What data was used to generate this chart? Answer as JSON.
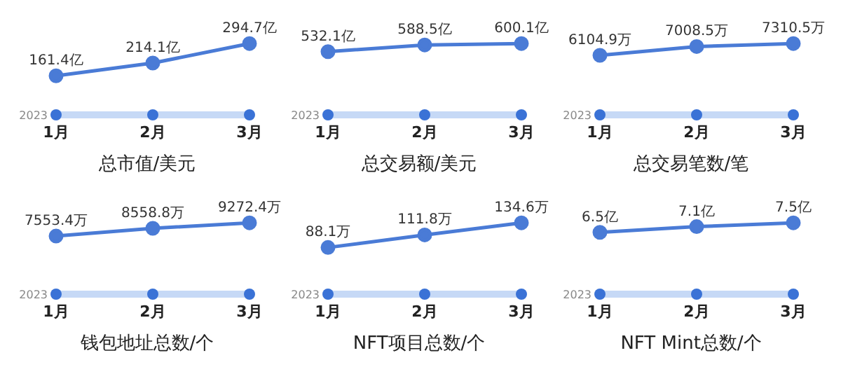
{
  "chart_data": [
    {
      "type": "line",
      "title": "总市值/美元",
      "categories": [
        "1月",
        "2月",
        "3月"
      ],
      "values": [
        161.4,
        214.1,
        294.7
      ],
      "value_labels": [
        "161.4亿",
        "214.1亿",
        "294.7亿"
      ],
      "color": "#4a7bd6",
      "marker": "circle",
      "annotations": [
        "2023"
      ]
    },
    {
      "type": "line",
      "title": "总交易额/美元",
      "categories": [
        "1月",
        "2月",
        "3月"
      ],
      "values": [
        532.1,
        588.5,
        600.1
      ],
      "value_labels": [
        "532.1亿",
        "588.5亿",
        "600.1亿"
      ],
      "color": "#4a7bd6",
      "marker": "circle",
      "annotations": [
        "2023"
      ]
    },
    {
      "type": "line",
      "title": "总交易笔数/笔",
      "categories": [
        "1月",
        "2月",
        "3月"
      ],
      "values": [
        6104.9,
        7008.5,
        7310.5
      ],
      "value_labels": [
        "6104.9万",
        "7008.5万",
        "7310.5万"
      ],
      "color": "#4a7bd6",
      "marker": "circle",
      "annotations": [
        "2023"
      ]
    },
    {
      "type": "line",
      "title": "钱包地址总数/个",
      "categories": [
        "1月",
        "2月",
        "3月"
      ],
      "values": [
        7553.4,
        8558.8,
        9272.4
      ],
      "value_labels": [
        "7553.4万",
        "8558.8万",
        "9272.4万"
      ],
      "color": "#4a7bd6",
      "marker": "circle",
      "annotations": [
        "2023"
      ]
    },
    {
      "type": "line",
      "title": "NFT项目总数/个",
      "categories": [
        "1月",
        "2月",
        "3月"
      ],
      "values": [
        88.1,
        111.8,
        134.6
      ],
      "value_labels": [
        "88.1万",
        "111.8万",
        "134.6万"
      ],
      "color": "#4a7bd6",
      "marker": "circle",
      "annotations": [
        "2023"
      ]
    },
    {
      "type": "line",
      "title": "NFT Mint总数/个",
      "categories": [
        "1月",
        "2月",
        "3月"
      ],
      "values": [
        6.5,
        7.1,
        7.5
      ],
      "value_labels": [
        "6.5亿",
        "7.1亿",
        "7.5亿"
      ],
      "color": "#4a7bd6",
      "marker": "circle",
      "annotations": [
        "2023"
      ]
    }
  ]
}
